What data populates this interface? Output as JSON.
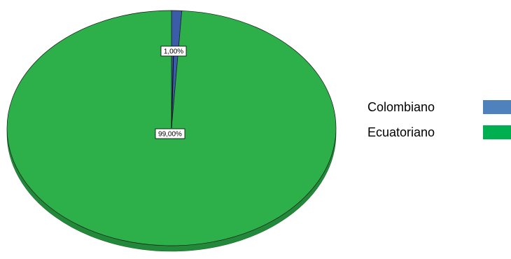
{
  "chart_data": {
    "type": "pie",
    "style": "3d",
    "categories": [
      "Colombiano",
      "Ecuatoriano"
    ],
    "values": [
      1.0,
      99.0
    ],
    "data_labels": [
      "1,00%",
      "99,00%"
    ],
    "colors": [
      "#3B5CA8",
      "#2DB04A"
    ],
    "legend": {
      "placement": "right",
      "entries": [
        "Colombiano",
        "Ecuatoriano"
      ],
      "swatch_colors": [
        "#4F81BD",
        "#00B050"
      ]
    }
  }
}
